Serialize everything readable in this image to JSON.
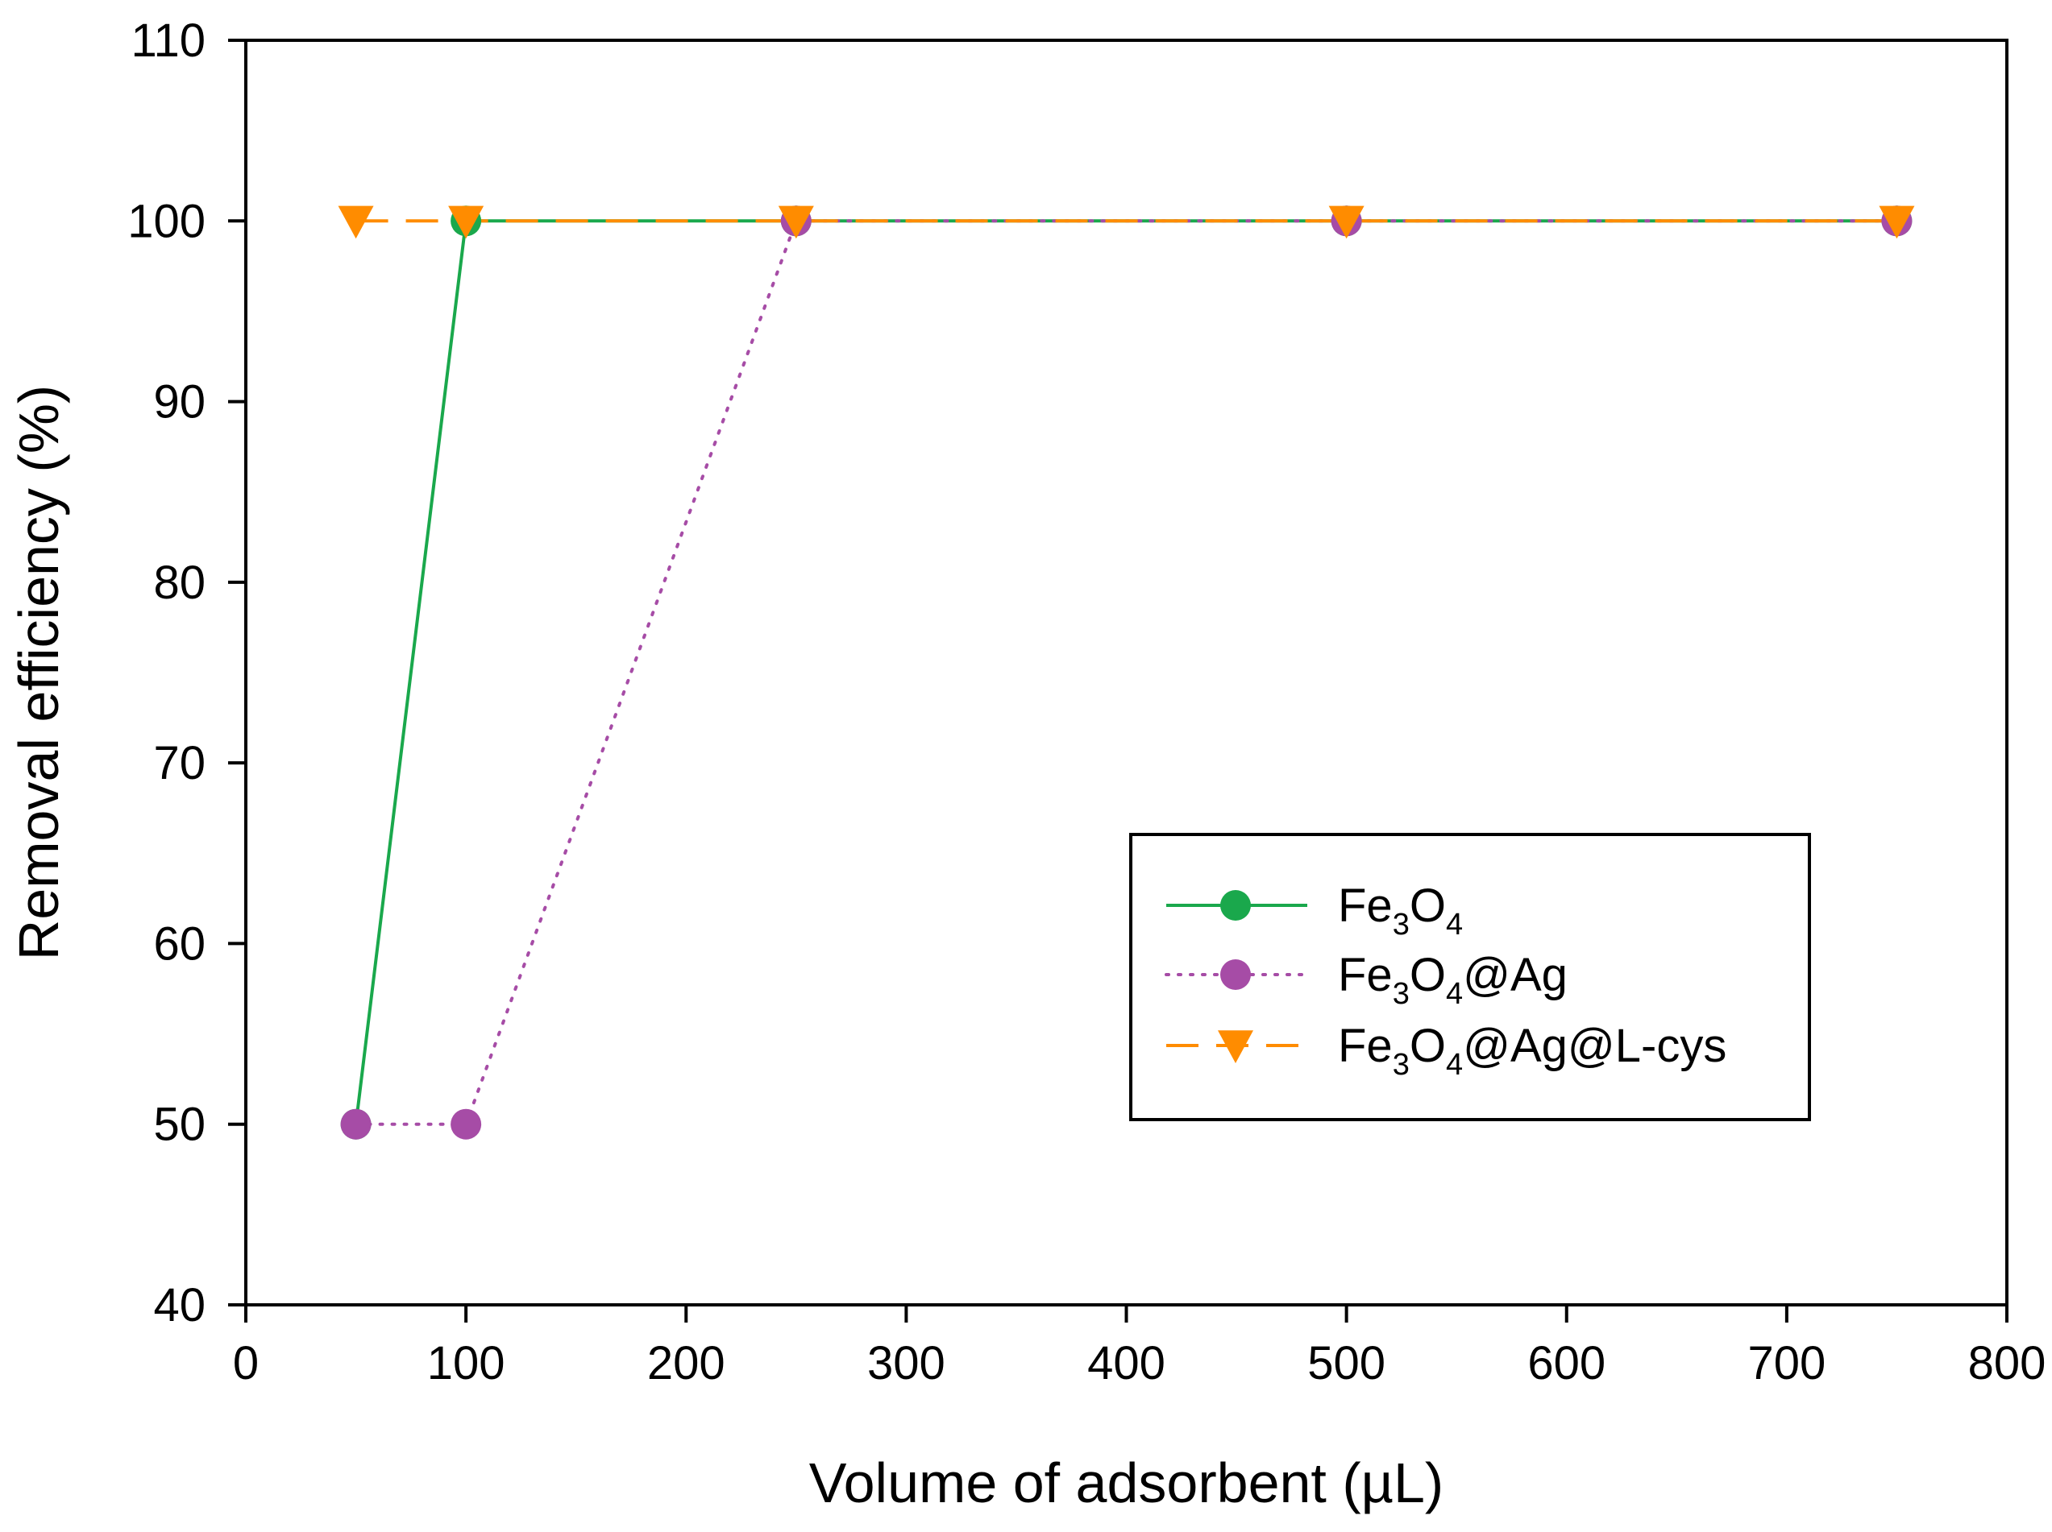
{
  "chart_data": {
    "type": "line",
    "title": "",
    "xlabel": "Volume of adsorbent (µL)",
    "ylabel": "Removal efficiency (%)",
    "xlim": [
      0,
      800
    ],
    "ylim": [
      40,
      110
    ],
    "xticks": [
      0,
      100,
      200,
      300,
      400,
      500,
      600,
      700,
      800
    ],
    "yticks": [
      40,
      50,
      60,
      70,
      80,
      90,
      100,
      110
    ],
    "grid": false,
    "legend_position": "center-right",
    "series": [
      {
        "name": "Fe3O4",
        "legend_parts": [
          "Fe",
          "3",
          "O",
          "4",
          ""
        ],
        "x": [
          50,
          100,
          250,
          500,
          750
        ],
        "y": [
          50,
          100,
          100,
          100,
          100
        ],
        "color": "#1aa84c",
        "line_style": "solid",
        "marker": "circle"
      },
      {
        "name": "Fe3O4@Ag",
        "legend_parts": [
          "Fe",
          "3",
          "O",
          "4",
          "@Ag"
        ],
        "x": [
          50,
          100,
          250,
          500,
          750
        ],
        "y": [
          50,
          50,
          100,
          100,
          100
        ],
        "color": "#a64ca6",
        "line_style": "dotted",
        "marker": "circle"
      },
      {
        "name": "Fe3O4@Ag@L-cys",
        "legend_parts": [
          "Fe",
          "3",
          "O",
          "4",
          "@Ag@L-cys"
        ],
        "x": [
          50,
          100,
          250,
          500,
          750
        ],
        "y": [
          100,
          100,
          100,
          100,
          100
        ],
        "color": "#ff8c00",
        "line_style": "dashed",
        "marker": "triangle-down"
      }
    ]
  }
}
